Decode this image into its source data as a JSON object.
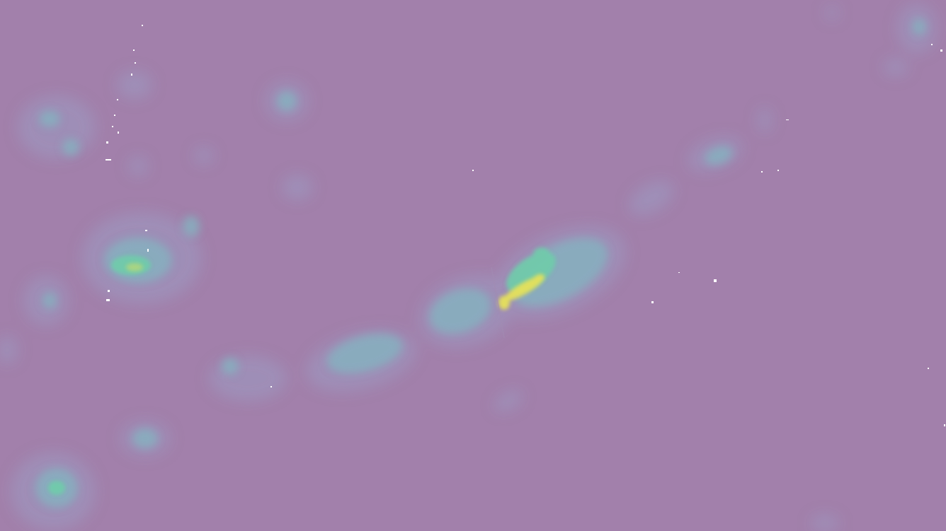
{
  "map": {
    "type": "heatmap-overlay",
    "colors": {
      "background": "#a280ab",
      "low": "#9f8fb8",
      "mid": "#86b0bf",
      "high": "#6fccaa",
      "peak": "#e6e15a",
      "speck": "#ffffff"
    },
    "legend": null,
    "labels": []
  }
}
